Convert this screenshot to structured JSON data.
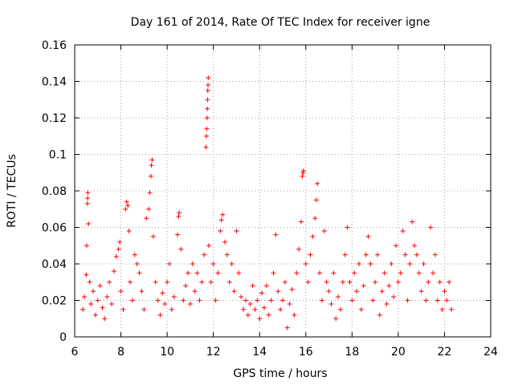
{
  "chart_data": {
    "type": "scatter",
    "title": "Day 161 of 2014, Rate Of TEC Index for receiver igne",
    "xlabel": "GPS time / hours",
    "ylabel": "ROTI / TECUs",
    "xlim": [
      6,
      24
    ],
    "ylim": [
      0,
      0.16
    ],
    "xticks": [
      6,
      8,
      10,
      12,
      14,
      16,
      18,
      20,
      22,
      24
    ],
    "xtick_labels": [
      "6",
      "8",
      "10",
      "12",
      "14",
      "16",
      "18",
      "20",
      "22",
      "24"
    ],
    "yticks": [
      0,
      0.02,
      0.04,
      0.06,
      0.08,
      0.1,
      0.12,
      0.14,
      0.16
    ],
    "ytick_labels": [
      "0",
      "0.02",
      "0.04",
      "0.06",
      "0.08",
      "0.1",
      "0.12",
      "0.14",
      "0.16"
    ],
    "grid": true,
    "marker": "+",
    "color": "#ff0000",
    "x_range_observed": [
      6.35,
      22.3
    ],
    "features": [
      {
        "name": "spike-6.5h",
        "x": 6.55,
        "y_range": [
          0.072,
          0.08
        ]
      },
      {
        "name": "spike-8.2h",
        "x": 8.25,
        "y_range": [
          0.065,
          0.075
        ]
      },
      {
        "name": "spike-9.3h",
        "x": 9.3,
        "y_range": [
          0.06,
          0.097
        ]
      },
      {
        "name": "spike-10.5h",
        "x": 10.5,
        "y_range": [
          0.055,
          0.068
        ]
      },
      {
        "name": "spike-11.7h",
        "x": 11.72,
        "y_range": [
          0.102,
          0.142
        ]
      },
      {
        "name": "spike-12.3h",
        "x": 12.35,
        "y_range": [
          0.055,
          0.068
        ]
      },
      {
        "name": "spike-15.9h",
        "x": 15.9,
        "y_range": [
          0.086,
          0.091
        ]
      },
      {
        "name": "spike-16.4h",
        "x": 16.45,
        "y_range": [
          0.075,
          0.085
        ]
      },
      {
        "name": "spike-20.5h",
        "x": 20.6,
        "y_range": [
          0.055,
          0.064
        ]
      }
    ],
    "series": [
      {
        "name": "ROTI",
        "points": [
          [
            6.35,
            0.015
          ],
          [
            6.42,
            0.022
          ],
          [
            6.5,
            0.034
          ],
          [
            6.52,
            0.05
          ],
          [
            6.55,
            0.073
          ],
          [
            6.56,
            0.076
          ],
          [
            6.57,
            0.079
          ],
          [
            6.6,
            0.062
          ],
          [
            6.65,
            0.03
          ],
          [
            6.7,
            0.018
          ],
          [
            6.8,
            0.025
          ],
          [
            6.9,
            0.012
          ],
          [
            7.0,
            0.02
          ],
          [
            7.1,
            0.028
          ],
          [
            7.2,
            0.016
          ],
          [
            7.3,
            0.01
          ],
          [
            7.4,
            0.022
          ],
          [
            7.5,
            0.03
          ],
          [
            7.6,
            0.018
          ],
          [
            7.7,
            0.036
          ],
          [
            7.8,
            0.044
          ],
          [
            7.9,
            0.048
          ],
          [
            7.95,
            0.052
          ],
          [
            8.0,
            0.025
          ],
          [
            8.1,
            0.015
          ],
          [
            8.2,
            0.07
          ],
          [
            8.25,
            0.074
          ],
          [
            8.3,
            0.072
          ],
          [
            8.35,
            0.058
          ],
          [
            8.4,
            0.03
          ],
          [
            8.5,
            0.02
          ],
          [
            8.6,
            0.045
          ],
          [
            8.7,
            0.04
          ],
          [
            8.8,
            0.035
          ],
          [
            8.9,
            0.025
          ],
          [
            9.0,
            0.015
          ],
          [
            9.1,
            0.065
          ],
          [
            9.2,
            0.07
          ],
          [
            9.25,
            0.079
          ],
          [
            9.3,
            0.088
          ],
          [
            9.32,
            0.094
          ],
          [
            9.35,
            0.097
          ],
          [
            9.4,
            0.055
          ],
          [
            9.5,
            0.03
          ],
          [
            9.6,
            0.02
          ],
          [
            9.7,
            0.012
          ],
          [
            9.8,
            0.024
          ],
          [
            9.9,
            0.018
          ],
          [
            10.0,
            0.03
          ],
          [
            10.1,
            0.04
          ],
          [
            10.2,
            0.015
          ],
          [
            10.3,
            0.022
          ],
          [
            10.45,
            0.056
          ],
          [
            10.5,
            0.066
          ],
          [
            10.52,
            0.068
          ],
          [
            10.6,
            0.048
          ],
          [
            10.7,
            0.02
          ],
          [
            10.8,
            0.028
          ],
          [
            10.9,
            0.035
          ],
          [
            11.0,
            0.018
          ],
          [
            11.1,
            0.04
          ],
          [
            11.2,
            0.025
          ],
          [
            11.3,
            0.035
          ],
          [
            11.4,
            0.02
          ],
          [
            11.5,
            0.03
          ],
          [
            11.6,
            0.045
          ],
          [
            11.68,
            0.104
          ],
          [
            11.7,
            0.11
          ],
          [
            11.72,
            0.114
          ],
          [
            11.73,
            0.12
          ],
          [
            11.74,
            0.125
          ],
          [
            11.75,
            0.13
          ],
          [
            11.76,
            0.135
          ],
          [
            11.77,
            0.138
          ],
          [
            11.78,
            0.142
          ],
          [
            11.8,
            0.05
          ],
          [
            11.9,
            0.03
          ],
          [
            12.0,
            0.04
          ],
          [
            12.1,
            0.02
          ],
          [
            12.2,
            0.035
          ],
          [
            12.3,
            0.058
          ],
          [
            12.35,
            0.064
          ],
          [
            12.4,
            0.067
          ],
          [
            12.5,
            0.052
          ],
          [
            12.6,
            0.045
          ],
          [
            12.7,
            0.03
          ],
          [
            12.8,
            0.04
          ],
          [
            12.9,
            0.025
          ],
          [
            13.0,
            0.058
          ],
          [
            13.1,
            0.035
          ],
          [
            13.2,
            0.022
          ],
          [
            13.3,
            0.015
          ],
          [
            13.4,
            0.02
          ],
          [
            13.5,
            0.012
          ],
          [
            13.6,
            0.018
          ],
          [
            13.7,
            0.028
          ],
          [
            13.8,
            0.015
          ],
          [
            13.9,
            0.02
          ],
          [
            14.0,
            0.01
          ],
          [
            14.1,
            0.024
          ],
          [
            14.2,
            0.016
          ],
          [
            14.3,
            0.028
          ],
          [
            14.4,
            0.012
          ],
          [
            14.5,
            0.02
          ],
          [
            14.6,
            0.035
          ],
          [
            14.7,
            0.056
          ],
          [
            14.8,
            0.025
          ],
          [
            14.9,
            0.015
          ],
          [
            15.0,
            0.02
          ],
          [
            15.1,
            0.03
          ],
          [
            15.2,
            0.005
          ],
          [
            15.3,
            0.018
          ],
          [
            15.4,
            0.026
          ],
          [
            15.5,
            0.012
          ],
          [
            15.6,
            0.035
          ],
          [
            15.7,
            0.048
          ],
          [
            15.8,
            0.063
          ],
          [
            15.85,
            0.088
          ],
          [
            15.88,
            0.09
          ],
          [
            15.9,
            0.091
          ],
          [
            16.0,
            0.04
          ],
          [
            16.1,
            0.03
          ],
          [
            16.2,
            0.045
          ],
          [
            16.3,
            0.055
          ],
          [
            16.4,
            0.065
          ],
          [
            16.45,
            0.075
          ],
          [
            16.5,
            0.084
          ],
          [
            16.6,
            0.035
          ],
          [
            16.7,
            0.02
          ],
          [
            16.8,
            0.058
          ],
          [
            16.9,
            0.03
          ],
          [
            17.0,
            0.025
          ],
          [
            17.1,
            0.018
          ],
          [
            17.2,
            0.035
          ],
          [
            17.3,
            0.01
          ],
          [
            17.4,
            0.022
          ],
          [
            17.5,
            0.015
          ],
          [
            17.6,
            0.03
          ],
          [
            17.7,
            0.045
          ],
          [
            17.8,
            0.06
          ],
          [
            17.9,
            0.03
          ],
          [
            18.0,
            0.02
          ],
          [
            18.1,
            0.035
          ],
          [
            18.2,
            0.025
          ],
          [
            18.3,
            0.04
          ],
          [
            18.4,
            0.015
          ],
          [
            18.5,
            0.028
          ],
          [
            18.6,
            0.045
          ],
          [
            18.7,
            0.055
          ],
          [
            18.8,
            0.04
          ],
          [
            18.9,
            0.02
          ],
          [
            19.0,
            0.03
          ],
          [
            19.1,
            0.045
          ],
          [
            19.2,
            0.012
          ],
          [
            19.3,
            0.025
          ],
          [
            19.4,
            0.035
          ],
          [
            19.5,
            0.018
          ],
          [
            19.6,
            0.028
          ],
          [
            19.7,
            0.04
          ],
          [
            19.8,
            0.022
          ],
          [
            19.9,
            0.05
          ],
          [
            20.0,
            0.03
          ],
          [
            20.1,
            0.035
          ],
          [
            20.2,
            0.058
          ],
          [
            20.3,
            0.045
          ],
          [
            20.4,
            0.02
          ],
          [
            20.5,
            0.04
          ],
          [
            20.6,
            0.063
          ],
          [
            20.7,
            0.05
          ],
          [
            20.8,
            0.045
          ],
          [
            20.9,
            0.035
          ],
          [
            21.0,
            0.025
          ],
          [
            21.1,
            0.04
          ],
          [
            21.2,
            0.02
          ],
          [
            21.3,
            0.03
          ],
          [
            21.4,
            0.06
          ],
          [
            21.5,
            0.035
          ],
          [
            21.6,
            0.045
          ],
          [
            21.7,
            0.02
          ],
          [
            21.8,
            0.03
          ],
          [
            21.9,
            0.015
          ],
          [
            22.0,
            0.025
          ],
          [
            22.1,
            0.02
          ],
          [
            22.2,
            0.03
          ],
          [
            22.3,
            0.015
          ]
        ]
      }
    ]
  }
}
